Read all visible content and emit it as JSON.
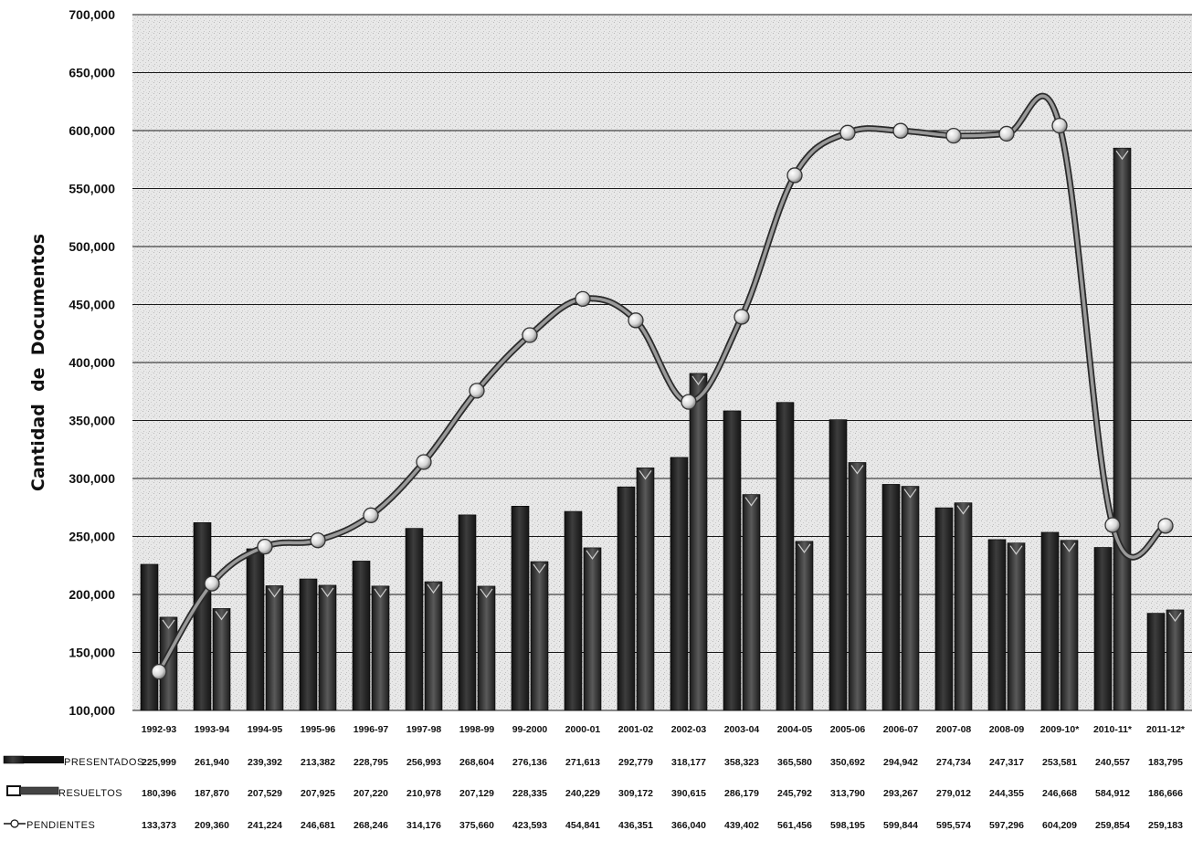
{
  "chart_data": {
    "type": "bar",
    "title": "",
    "xlabel": "",
    "ylabel": "Cantidad  de  Documentos",
    "ylim": [
      100000,
      700000
    ],
    "ytick_step": 50000,
    "ytick_labels": [
      "100,000",
      "150,000",
      "200,000",
      "250,000",
      "300,000",
      "350,000",
      "400,000",
      "450,000",
      "500,000",
      "550,000",
      "600,000",
      "650,000",
      "700,000"
    ],
    "grid": true,
    "legend_position": "data-table-below",
    "categories": [
      "1992-93",
      "1993-94",
      "1994-95",
      "1995-96",
      "1996-97",
      "1997-98",
      "1998-99",
      "99-2000",
      "2000-01",
      "2001-02",
      "2002-03",
      "2003-04",
      "2004-05",
      "2005-06",
      "2006-07",
      "2007-08",
      "2008-09",
      "2009-10*",
      "2010-11*",
      "2011-12*"
    ],
    "series": [
      {
        "name": "PRESENTADOS",
        "type": "bar",
        "color": "#2a2a2a",
        "values": [
          225999,
          261940,
          239392,
          213382,
          228795,
          256993,
          268604,
          276136,
          271613,
          292779,
          318177,
          358323,
          365580,
          350692,
          294942,
          274734,
          247317,
          253581,
          240557,
          183795
        ],
        "value_labels": [
          "225,999",
          "261,940",
          "239,392",
          "213,382",
          "228,795",
          "256,993",
          "268,604",
          "276,136",
          "271,613",
          "292,779",
          "318,177",
          "358,323",
          "365,580",
          "350,692",
          "294,942",
          "274,734",
          "247,317",
          "253,581",
          "240,557",
          "183,795"
        ]
      },
      {
        "name": "RESUELTOS",
        "type": "bar",
        "color": "#3a3a3a",
        "values": [
          180396,
          187870,
          207529,
          207925,
          207220,
          210978,
          207129,
          228335,
          240229,
          309172,
          390615,
          286179,
          245792,
          313790,
          293267,
          279012,
          244355,
          246668,
          584912,
          186666
        ],
        "value_labels": [
          "180,396",
          "187,870",
          "207,529",
          "207,925",
          "207,220",
          "210,978",
          "207,129",
          "228,335",
          "240,229",
          "309,172",
          "390,615",
          "286,179",
          "245,792",
          "313,790",
          "293,267",
          "279,012",
          "244,355",
          "246,668",
          "584,912",
          "186,666"
        ]
      },
      {
        "name": "PENDIENTES",
        "type": "line",
        "color": "#555555",
        "values": [
          133373,
          209360,
          241224,
          246681,
          268246,
          314176,
          375660,
          423593,
          454841,
          436351,
          366040,
          439402,
          561456,
          598195,
          599844,
          595574,
          597296,
          604209,
          259854,
          259183
        ],
        "value_labels": [
          "133,373",
          "209,360",
          "241,224",
          "246,681",
          "268,246",
          "314,176",
          "375,660",
          "423,593",
          "454,841",
          "436,351",
          "366,040",
          "439,402",
          "561,456",
          "598,195",
          "599,844",
          "595,574",
          "597,296",
          "604,209",
          "259,854",
          "259,183"
        ]
      }
    ]
  }
}
